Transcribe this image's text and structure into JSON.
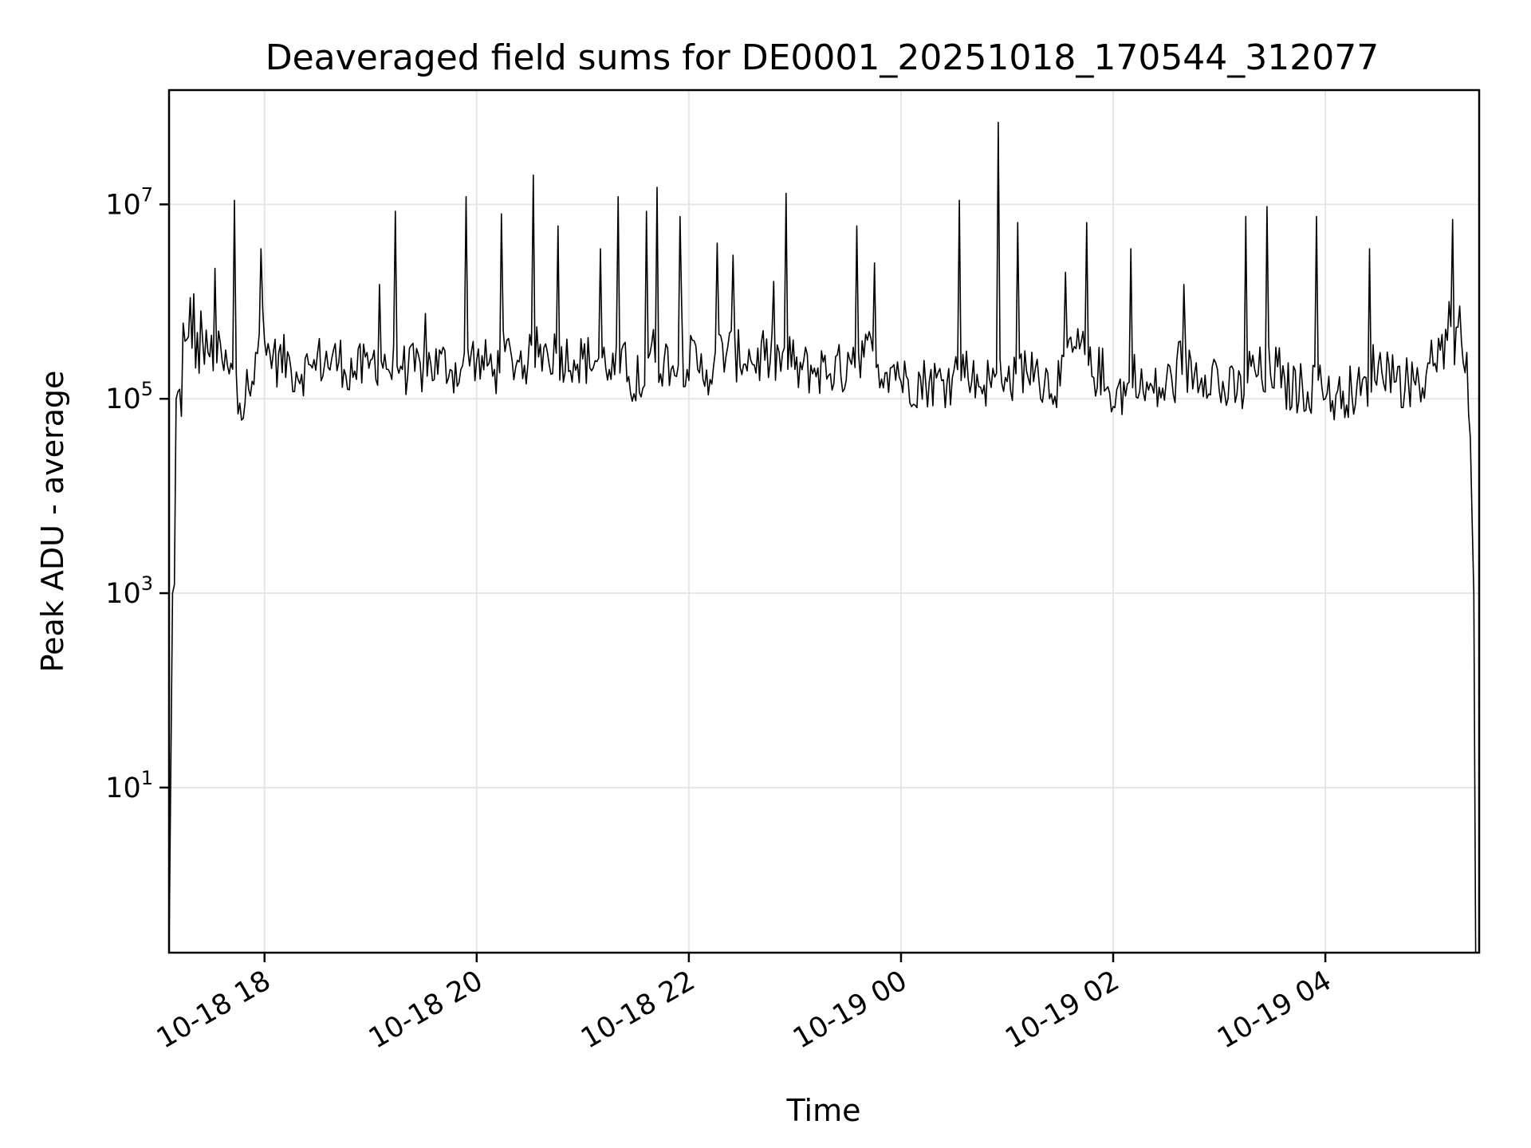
{
  "chart_data": {
    "type": "line",
    "title": "Deaveraged field sums for DE0001_20251018_170544_312077",
    "xlabel": "Time",
    "ylabel": "Peak ADU - average",
    "yscale": "log",
    "grid": true,
    "x_ticks": [
      "10-18 18",
      "10-18 20",
      "10-18 22",
      "10-19 00",
      "10-19 02",
      "10-19 04"
    ],
    "x_tick_values": [
      "2025-10-18 18:00",
      "2025-10-18 20:00",
      "2025-10-18 22:00",
      "2025-10-19 00:00",
      "2025-10-19 02:00",
      "2025-10-19 04:00"
    ],
    "xlim": [
      "2025-10-18 17:06",
      "2025-10-19 05:27"
    ],
    "y_ticks": [
      {
        "base": "10",
        "exp": "1",
        "value": 10
      },
      {
        "base": "10",
        "exp": "3",
        "value": 1000
      },
      {
        "base": "10",
        "exp": "5",
        "value": 100000
      },
      {
        "base": "10",
        "exp": "7",
        "value": 10000000
      }
    ],
    "ylim": [
      0.2,
      150000000
    ],
    "series": [
      {
        "color": "#000000",
        "points": [
          [
            "2025-10-18 17:06",
            0.2
          ],
          [
            "2025-10-18 17:08",
            1000
          ],
          [
            "2025-10-18 17:10",
            100000
          ],
          [
            "2025-10-18 17:14",
            600000
          ],
          [
            "2025-10-18 17:18",
            1100000
          ],
          [
            "2025-10-18 17:20",
            1200000
          ],
          [
            "2025-10-18 17:24",
            800000
          ],
          [
            "2025-10-18 17:28",
            300000
          ],
          [
            "2025-10-18 17:32",
            2200000
          ],
          [
            "2025-10-18 17:36",
            250000
          ],
          [
            "2025-10-18 17:40",
            180000
          ],
          [
            "2025-10-18 17:43",
            11000000
          ],
          [
            "2025-10-18 17:45",
            70000
          ],
          [
            "2025-10-18 17:50",
            200000
          ],
          [
            "2025-10-18 17:55",
            300000
          ],
          [
            "2025-10-18 17:58",
            3500000
          ],
          [
            "2025-10-18 18:00",
            400000
          ],
          [
            "2025-10-18 18:05",
            300000
          ],
          [
            "2025-10-18 18:15",
            200000
          ],
          [
            "2025-10-18 18:30",
            300000
          ],
          [
            "2025-10-18 18:45",
            200000
          ],
          [
            "2025-10-18 19:00",
            250000
          ],
          [
            "2025-10-18 19:05",
            1500000
          ],
          [
            "2025-10-18 19:10",
            200000
          ],
          [
            "2025-10-18 19:14",
            8500000
          ],
          [
            "2025-10-18 19:18",
            200000
          ],
          [
            "2025-10-18 19:30",
            250000
          ],
          [
            "2025-10-18 19:45",
            200000
          ],
          [
            "2025-10-18 19:54",
            12000000
          ],
          [
            "2025-10-18 20:00",
            250000
          ],
          [
            "2025-10-18 20:10",
            200000
          ],
          [
            "2025-10-18 20:14",
            8000000
          ],
          [
            "2025-10-18 20:20",
            250000
          ],
          [
            "2025-10-18 20:32",
            20000000
          ],
          [
            "2025-10-18 20:40",
            300000
          ],
          [
            "2025-10-18 20:46",
            6000000
          ],
          [
            "2025-10-18 20:55",
            250000
          ],
          [
            "2025-10-18 21:10",
            3500000
          ],
          [
            "2025-10-18 21:15",
            200000
          ],
          [
            "2025-10-18 21:20",
            12000000
          ],
          [
            "2025-10-18 21:25",
            150000
          ],
          [
            "2025-10-18 21:36",
            8500000
          ],
          [
            "2025-10-18 21:42",
            15000000
          ],
          [
            "2025-10-18 21:50",
            200000
          ],
          [
            "2025-10-18 21:55",
            7500000
          ],
          [
            "2025-10-18 22:05",
            200000
          ],
          [
            "2025-10-18 22:16",
            4000000
          ],
          [
            "2025-10-18 22:25",
            3000000
          ],
          [
            "2025-10-18 22:35",
            250000
          ],
          [
            "2025-10-18 22:55",
            13000000
          ],
          [
            "2025-10-18 23:00",
            200000
          ],
          [
            "2025-10-18 23:30",
            300000
          ],
          [
            "2025-10-18 23:35",
            6000000
          ],
          [
            "2025-10-18 23:45",
            2500000
          ],
          [
            "2025-10-19 00:00",
            150000
          ],
          [
            "2025-10-19 00:30",
            200000
          ],
          [
            "2025-10-19 00:33",
            11000000
          ],
          [
            "2025-10-19 00:40",
            150000
          ],
          [
            "2025-10-19 00:55",
            70000000
          ],
          [
            "2025-10-19 01:00",
            150000
          ],
          [
            "2025-10-19 01:06",
            6500000
          ],
          [
            "2025-10-19 01:15",
            150000
          ],
          [
            "2025-10-19 01:33",
            2000000
          ],
          [
            "2025-10-19 01:45",
            6500000
          ],
          [
            "2025-10-19 01:55",
            120000
          ],
          [
            "2025-10-19 02:10",
            3500000
          ],
          [
            "2025-10-19 02:15",
            120000
          ],
          [
            "2025-10-19 02:30",
            150000
          ],
          [
            "2025-10-19 02:40",
            1500000
          ],
          [
            "2025-10-19 03:00",
            120000
          ],
          [
            "2025-10-19 03:15",
            7500000
          ],
          [
            "2025-10-19 03:25",
            120000
          ],
          [
            "2025-10-19 03:27",
            9500000
          ],
          [
            "2025-10-19 03:35",
            130000
          ],
          [
            "2025-10-19 03:55",
            7500000
          ],
          [
            "2025-10-19 04:00",
            100000
          ],
          [
            "2025-10-19 04:10",
            120000
          ],
          [
            "2025-10-19 04:25",
            3500000
          ],
          [
            "2025-10-19 04:40",
            150000
          ],
          [
            "2025-10-19 05:00",
            400000
          ],
          [
            "2025-10-19 05:10",
            1000000
          ],
          [
            "2025-10-19 05:12",
            7000000
          ],
          [
            "2025-10-19 05:16",
            900000
          ],
          [
            "2025-10-19 05:20",
            300000
          ],
          [
            "2025-10-19 05:22",
            40000
          ],
          [
            "2025-10-19 05:24",
            1000
          ],
          [
            "2025-10-19 05:25",
            0.2
          ]
        ]
      }
    ]
  }
}
